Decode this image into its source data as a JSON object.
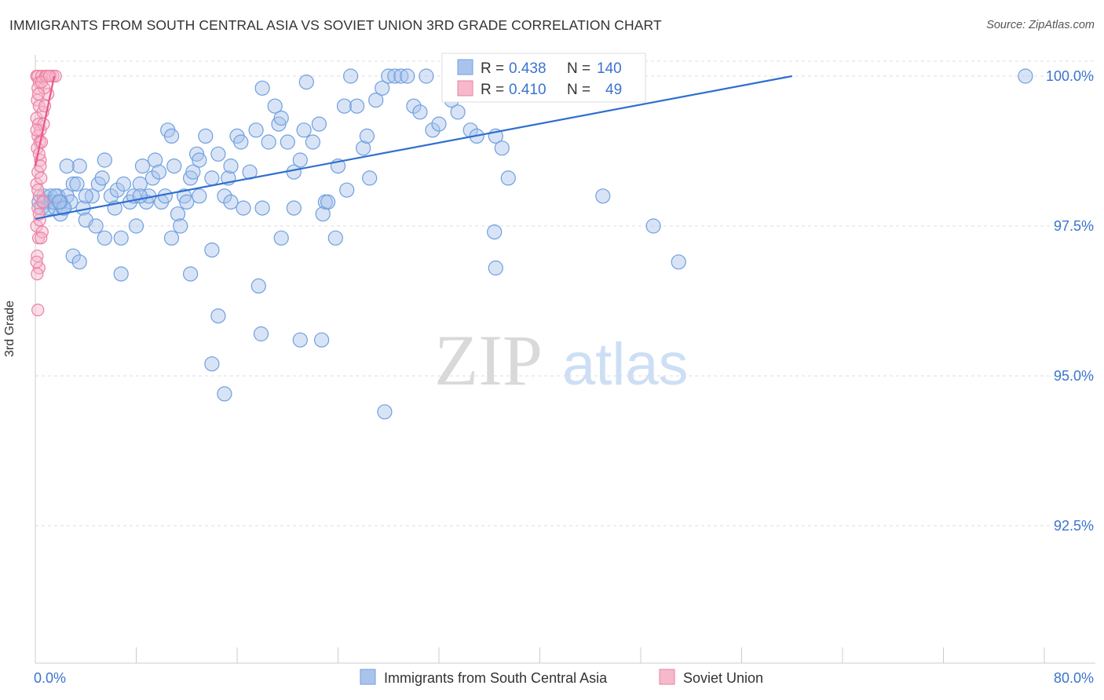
{
  "header": {
    "title": "IMMIGRANTS FROM SOUTH CENTRAL ASIA VS SOVIET UNION 3RD GRADE CORRELATION CHART",
    "source": "Source: ZipAtlas.com"
  },
  "watermark": {
    "zip": "ZIP",
    "atlas": "atlas"
  },
  "colors": {
    "blue_fill": "#a9c4ec",
    "blue_stroke": "#6f9fe0",
    "blue_line": "#2f6fcf",
    "pink_fill": "#f6b8cb",
    "pink_stroke": "#ec7fa2",
    "pink_line": "#e8578a",
    "axis_text": "#3b74cf",
    "grid": "#dddddd"
  },
  "legend_box": {
    "rows": [
      {
        "r_label": "R =",
        "r_value": "0.438",
        "n_label": "N =",
        "n_value": "140"
      },
      {
        "r_label": "R =",
        "r_value": "0.410",
        "n_label": "N =",
        "n_value": "49"
      }
    ]
  },
  "chart_data": {
    "type": "scatter",
    "title": "IMMIGRANTS FROM SOUTH CENTRAL ASIA VS SOVIET UNION 3RD GRADE CORRELATION CHART",
    "xlabel": "",
    "ylabel": "3rd Grade",
    "xlim": [
      0,
      80
    ],
    "ylim": [
      91.0,
      100.2
    ],
    "x_tick_labels": [
      "0.0%",
      "80.0%"
    ],
    "y_ticks": [
      92.5,
      95.0,
      97.5,
      100.0
    ],
    "y_tick_labels": [
      "92.5%",
      "95.0%",
      "97.5%",
      "100.0%"
    ],
    "grid": true,
    "legend_position": "bottom",
    "series": [
      {
        "name": "Immigrants from South Central Asia",
        "r": 0.438,
        "n": 140,
        "trend": [
          [
            0.0,
            97.62
          ],
          [
            60.0,
            100.0
          ]
        ],
        "points": [
          [
            0.3,
            97.9
          ],
          [
            0.5,
            97.8
          ],
          [
            0.7,
            98.0
          ],
          [
            0.8,
            97.9
          ],
          [
            1.0,
            97.8
          ],
          [
            1.2,
            98.0
          ],
          [
            1.3,
            97.9
          ],
          [
            1.5,
            97.9
          ],
          [
            1.6,
            97.8
          ],
          [
            1.8,
            98.0
          ],
          [
            2.0,
            97.7
          ],
          [
            2.2,
            97.8
          ],
          [
            2.5,
            98.0
          ],
          [
            2.8,
            97.9
          ],
          [
            3.0,
            98.2
          ],
          [
            3.3,
            98.2
          ],
          [
            3.5,
            98.5
          ],
          [
            3.8,
            97.8
          ],
          [
            4.0,
            97.6
          ],
          [
            4.5,
            98.0
          ],
          [
            4.8,
            97.5
          ],
          [
            5.0,
            98.2
          ],
          [
            5.3,
            98.3
          ],
          [
            5.5,
            98.6
          ],
          [
            6.0,
            98.0
          ],
          [
            6.3,
            97.8
          ],
          [
            6.5,
            98.1
          ],
          [
            7.0,
            98.2
          ],
          [
            7.5,
            97.9
          ],
          [
            7.8,
            98.0
          ],
          [
            8.0,
            97.5
          ],
          [
            8.3,
            98.2
          ],
          [
            8.5,
            98.5
          ],
          [
            8.8,
            97.9
          ],
          [
            9.0,
            98.0
          ],
          [
            9.3,
            98.3
          ],
          [
            9.5,
            98.6
          ],
          [
            9.8,
            98.4
          ],
          [
            10.0,
            97.9
          ],
          [
            10.3,
            98.0
          ],
          [
            10.5,
            99.1
          ],
          [
            10.8,
            99.0
          ],
          [
            11.0,
            98.5
          ],
          [
            11.3,
            97.7
          ],
          [
            11.5,
            97.5
          ],
          [
            11.8,
            98.0
          ],
          [
            12.0,
            97.9
          ],
          [
            12.3,
            98.3
          ],
          [
            12.5,
            98.4
          ],
          [
            12.8,
            98.7
          ],
          [
            13.0,
            98.6
          ],
          [
            13.5,
            99.0
          ],
          [
            14.0,
            98.3
          ],
          [
            14.5,
            98.7
          ],
          [
            15.0,
            98.0
          ],
          [
            15.3,
            98.3
          ],
          [
            15.5,
            98.5
          ],
          [
            16.0,
            99.0
          ],
          [
            16.3,
            98.9
          ],
          [
            16.5,
            97.8
          ],
          [
            17.0,
            98.4
          ],
          [
            17.5,
            99.1
          ],
          [
            18.0,
            99.8
          ],
          [
            18.5,
            98.9
          ],
          [
            19.0,
            99.5
          ],
          [
            19.3,
            99.2
          ],
          [
            19.5,
            99.3
          ],
          [
            20.0,
            98.9
          ],
          [
            20.5,
            98.4
          ],
          [
            21.0,
            98.6
          ],
          [
            21.3,
            99.1
          ],
          [
            21.5,
            99.9
          ],
          [
            22.0,
            98.9
          ],
          [
            22.5,
            99.2
          ],
          [
            23.0,
            97.9
          ],
          [
            24.0,
            98.5
          ],
          [
            24.5,
            99.5
          ],
          [
            25.0,
            100.0
          ],
          [
            25.5,
            99.5
          ],
          [
            26.0,
            98.8
          ],
          [
            26.3,
            99.0
          ],
          [
            26.5,
            98.3
          ],
          [
            27.0,
            99.6
          ],
          [
            27.5,
            99.8
          ],
          [
            28.0,
            100.0
          ],
          [
            28.5,
            100.0
          ],
          [
            29.0,
            100.0
          ],
          [
            29.5,
            100.0
          ],
          [
            30.0,
            99.5
          ],
          [
            30.5,
            99.4
          ],
          [
            31.0,
            100.0
          ],
          [
            31.5,
            99.1
          ],
          [
            32.0,
            99.2
          ],
          [
            33.0,
            99.6
          ],
          [
            33.5,
            99.4
          ],
          [
            34.5,
            99.1
          ],
          [
            35.0,
            99.0
          ],
          [
            36.5,
            99.0
          ],
          [
            37.0,
            98.8
          ],
          [
            37.5,
            98.3
          ],
          [
            40.0,
            100.0
          ],
          [
            3.0,
            97.0
          ],
          [
            3.5,
            96.9
          ],
          [
            6.8,
            96.7
          ],
          [
            12.3,
            96.7
          ],
          [
            14.0,
            97.1
          ],
          [
            14.5,
            96.0
          ],
          [
            14.0,
            95.2
          ],
          [
            15.0,
            94.7
          ],
          [
            17.7,
            96.5
          ],
          [
            17.9,
            95.7
          ],
          [
            21.0,
            95.6
          ],
          [
            22.7,
            95.6
          ],
          [
            27.7,
            94.4
          ],
          [
            36.5,
            96.8
          ],
          [
            36.5,
            100.0
          ],
          [
            36.4,
            97.4
          ],
          [
            45.0,
            98.0
          ],
          [
            49.0,
            97.5
          ],
          [
            51.0,
            96.9
          ],
          [
            2.5,
            98.5
          ],
          [
            4.0,
            98.0
          ],
          [
            5.5,
            97.3
          ],
          [
            6.8,
            97.3
          ],
          [
            8.3,
            98.0
          ],
          [
            10.8,
            97.3
          ],
          [
            13.0,
            98.0
          ],
          [
            15.5,
            97.9
          ],
          [
            18.0,
            97.8
          ],
          [
            19.5,
            97.3
          ],
          [
            20.5,
            97.8
          ],
          [
            22.8,
            97.7
          ],
          [
            23.2,
            97.9
          ],
          [
            23.8,
            97.3
          ],
          [
            24.7,
            98.1
          ],
          [
            78.5,
            100.0
          ],
          [
            2.0,
            97.9
          ],
          [
            1.6,
            98.0
          ],
          [
            2.3,
            97.8
          ],
          [
            1.9,
            97.9
          ]
        ]
      },
      {
        "name": "Soviet Union",
        "r": 0.41,
        "n": 49,
        "trend": [
          [
            0.0,
            98.5
          ],
          [
            1.5,
            100.0
          ]
        ],
        "points": [
          [
            0.1,
            100.0
          ],
          [
            0.2,
            100.0
          ],
          [
            0.3,
            99.9
          ],
          [
            0.2,
            99.8
          ],
          [
            0.15,
            99.6
          ],
          [
            0.3,
            99.5
          ],
          [
            0.1,
            99.3
          ],
          [
            0.25,
            99.2
          ],
          [
            0.2,
            99.0
          ],
          [
            0.35,
            98.9
          ],
          [
            0.15,
            98.8
          ],
          [
            0.4,
            98.6
          ],
          [
            0.2,
            98.4
          ],
          [
            0.1,
            98.2
          ],
          [
            0.3,
            98.0
          ],
          [
            0.2,
            97.8
          ],
          [
            0.1,
            97.5
          ],
          [
            0.25,
            97.3
          ],
          [
            0.15,
            97.0
          ],
          [
            0.3,
            96.8
          ],
          [
            0.2,
            96.1
          ],
          [
            0.5,
            100.0
          ],
          [
            0.8,
            100.0
          ],
          [
            1.0,
            99.7
          ],
          [
            0.6,
            99.4
          ],
          [
            0.4,
            99.1
          ],
          [
            1.2,
            100.0
          ],
          [
            1.4,
            100.0
          ],
          [
            0.9,
            100.0
          ],
          [
            1.6,
            100.0
          ],
          [
            0.7,
            99.8
          ],
          [
            0.5,
            98.9
          ],
          [
            0.3,
            98.7
          ],
          [
            0.45,
            98.3
          ],
          [
            0.6,
            97.9
          ],
          [
            0.35,
            97.6
          ],
          [
            0.55,
            97.4
          ],
          [
            0.15,
            96.7
          ],
          [
            0.5,
            99.9
          ],
          [
            0.25,
            99.7
          ],
          [
            0.65,
            99.2
          ],
          [
            0.1,
            99.1
          ],
          [
            0.4,
            98.5
          ],
          [
            0.2,
            98.1
          ],
          [
            0.3,
            97.7
          ],
          [
            0.45,
            97.3
          ],
          [
            0.1,
            96.9
          ],
          [
            1.1,
            100.0
          ],
          [
            0.75,
            99.5
          ]
        ]
      }
    ]
  }
}
